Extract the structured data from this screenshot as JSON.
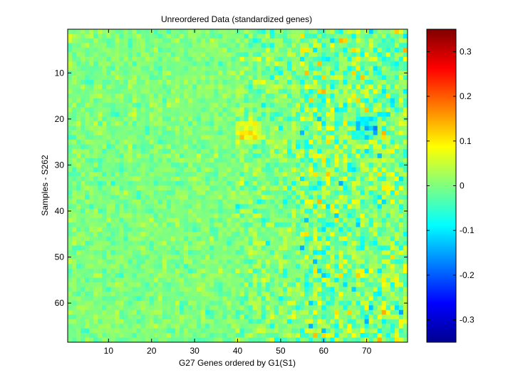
{
  "chart_data": {
    "type": "heatmap",
    "title": "Unreordered Data (standardized genes)",
    "xlabel": "G27 Genes ordered by G1(S1)",
    "ylabel": "Samples - S262",
    "columns": 79,
    "rows": 68,
    "xlim": [
      0.5,
      79.5
    ],
    "ylim": [
      0.5,
      68.5
    ],
    "y_direction": "top-to-bottom",
    "x_ticks": [
      10,
      20,
      30,
      40,
      50,
      60,
      70
    ],
    "y_ticks": [
      10,
      20,
      30,
      40,
      50,
      60
    ],
    "colormap": "jet",
    "colorbar": {
      "clim": [
        -0.35,
        0.35
      ],
      "ticks": [
        -0.3,
        -0.2,
        -0.1,
        0,
        0.1,
        0.2,
        0.3
      ],
      "tick_labels": [
        "-0.3",
        "-0.2",
        "-0.1",
        "0",
        "0.1",
        "0.2",
        "0.3"
      ]
    },
    "value_summary": "Most cells near -0.05 to 0.05 (cyan/green); stronger positive (yellow/orange/red) and negative (blue) values concentrated in columns 45-79; a horizontal band of warmer values near rows 22-25 around columns 40-45.",
    "grid": false
  }
}
